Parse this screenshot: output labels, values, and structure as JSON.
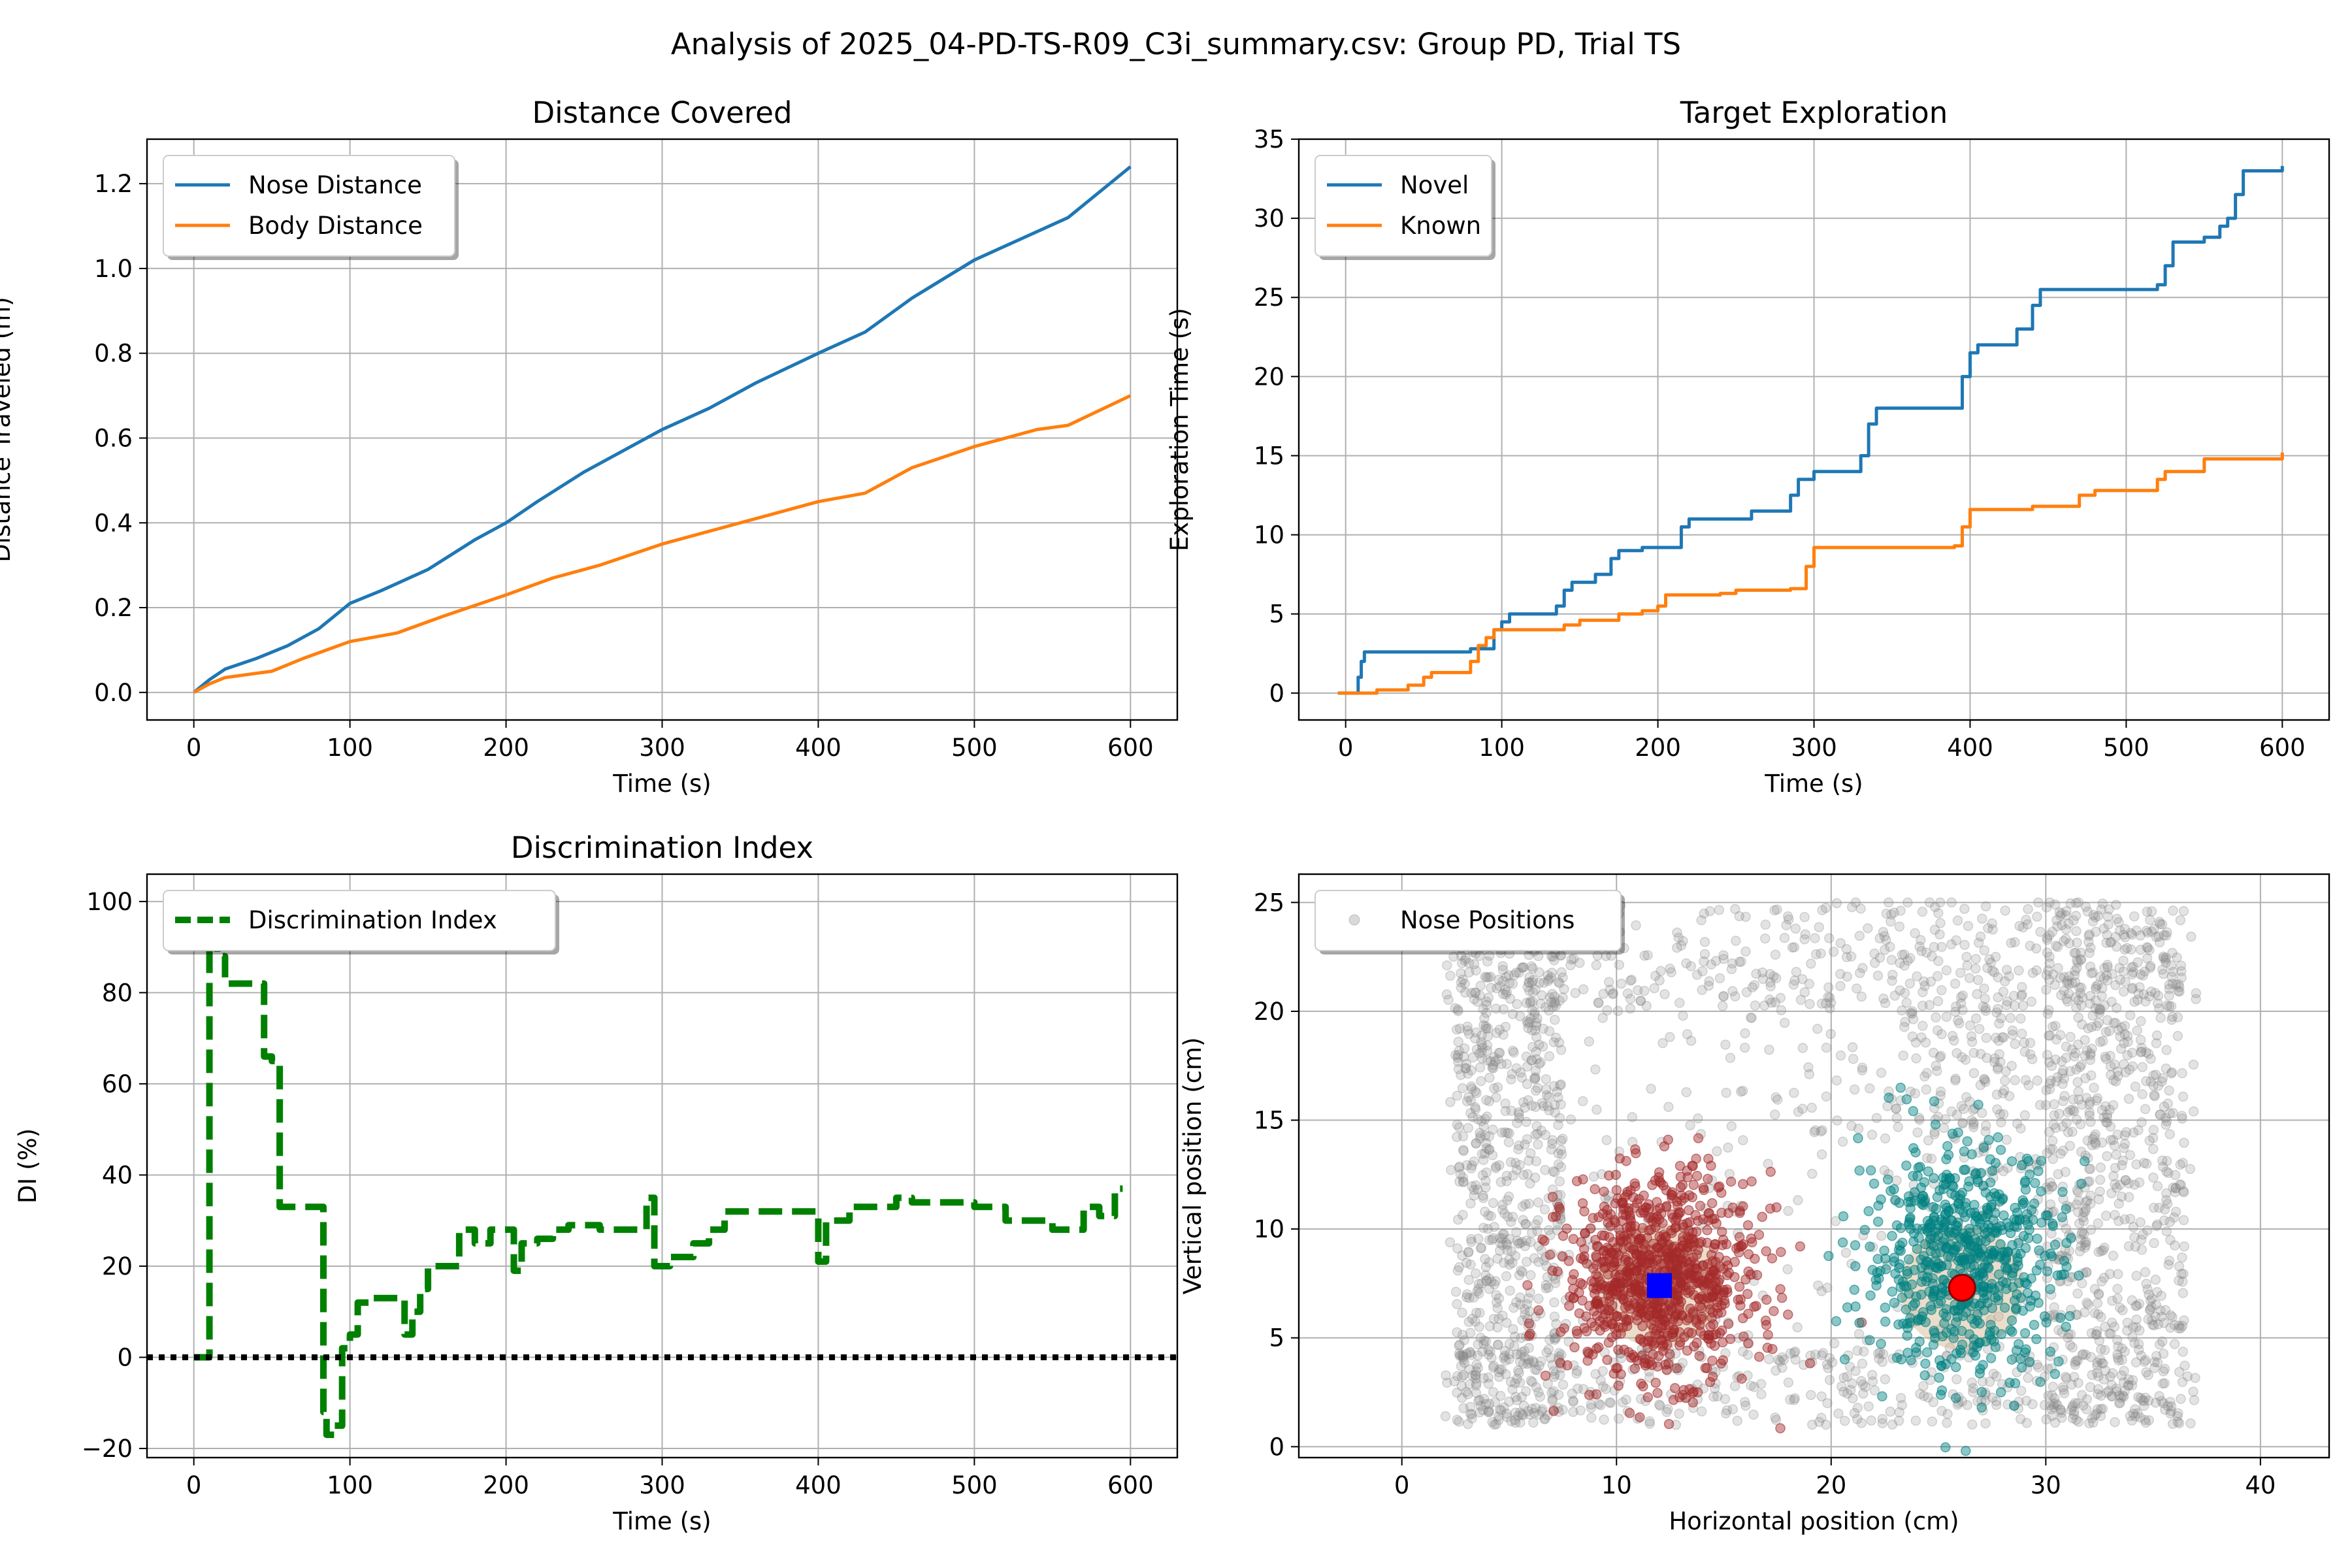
{
  "suptitle": "Analysis of 2025_04-PD-TS-R09_C3i_summary.csv: Group PD, Trial TS",
  "colors": {
    "blue": "#1f77b4",
    "orange": "#ff7f0e",
    "green": "#008000",
    "gray": "#808080",
    "darkred": "#a52a2a",
    "teal": "#008080",
    "tan": "#d2b48c",
    "marker_blue": "#0000ff",
    "marker_red": "#ff0000"
  },
  "chart_data": [
    {
      "type": "line",
      "title": "Distance Covered",
      "xlabel": "Time (s)",
      "ylabel": "Distance Traveled (m)",
      "xlim": [
        -30,
        630
      ],
      "ylim": [
        -0.065,
        1.305
      ],
      "xticks": [
        0,
        100,
        200,
        300,
        400,
        500,
        600
      ],
      "yticks": [
        0.0,
        0.2,
        0.4,
        0.6,
        0.8,
        1.0,
        1.2
      ],
      "ytick_decimals": 1,
      "grid": true,
      "legend": "upper left",
      "series": [
        {
          "name": "Nose Distance",
          "color": "#1f77b4",
          "style": "solid",
          "x": [
            0,
            10,
            20,
            40,
            60,
            80,
            100,
            120,
            150,
            180,
            200,
            220,
            250,
            280,
            300,
            330,
            360,
            400,
            430,
            460,
            500,
            530,
            560,
            600
          ],
          "y": [
            0.0,
            0.03,
            0.055,
            0.08,
            0.11,
            0.15,
            0.21,
            0.24,
            0.29,
            0.36,
            0.4,
            0.45,
            0.52,
            0.58,
            0.62,
            0.67,
            0.73,
            0.8,
            0.85,
            0.93,
            1.02,
            1.07,
            1.12,
            1.24
          ]
        },
        {
          "name": "Body Distance",
          "color": "#ff7f0e",
          "style": "solid",
          "x": [
            0,
            10,
            20,
            50,
            70,
            100,
            130,
            160,
            200,
            230,
            260,
            300,
            350,
            400,
            430,
            460,
            500,
            540,
            560,
            600
          ],
          "y": [
            0.0,
            0.02,
            0.035,
            0.05,
            0.08,
            0.12,
            0.14,
            0.18,
            0.23,
            0.27,
            0.3,
            0.35,
            0.4,
            0.45,
            0.47,
            0.53,
            0.58,
            0.62,
            0.63,
            0.7
          ]
        }
      ]
    },
    {
      "type": "line",
      "title": "Target Exploration",
      "xlabel": "Time (s)",
      "ylabel": "Exploration Time (s)",
      "xlim": [
        -30,
        630
      ],
      "ylim": [
        -1.7,
        35.0
      ],
      "xticks": [
        0,
        100,
        200,
        300,
        400,
        500,
        600
      ],
      "yticks": [
        0,
        5,
        10,
        15,
        20,
        25,
        30,
        35
      ],
      "ytick_decimals": 0,
      "grid": true,
      "legend": "upper left",
      "series": [
        {
          "name": "Novel",
          "color": "#1f77b4",
          "style": "steps",
          "x": [
            -5,
            5,
            8,
            10,
            12,
            80,
            95,
            100,
            105,
            135,
            140,
            145,
            160,
            170,
            175,
            190,
            215,
            220,
            260,
            285,
            290,
            300,
            330,
            335,
            340,
            390,
            395,
            400,
            405,
            430,
            440,
            445,
            520,
            525,
            530,
            550,
            560,
            565,
            570,
            575,
            600
          ],
          "y": [
            0,
            0,
            1.0,
            2.0,
            2.6,
            2.8,
            4.0,
            4.5,
            5.0,
            5.5,
            6.5,
            7.0,
            7.5,
            8.5,
            9.0,
            9.2,
            10.5,
            11.0,
            11.5,
            12.5,
            13.5,
            14.0,
            15.0,
            17.0,
            18.0,
            18.0,
            20.0,
            21.5,
            22.0,
            23.0,
            24.5,
            25.5,
            25.8,
            27.0,
            28.5,
            28.8,
            29.5,
            30.0,
            31.5,
            33.0,
            33.3
          ]
        },
        {
          "name": "Known",
          "color": "#ff7f0e",
          "style": "steps",
          "x": [
            -5,
            10,
            20,
            40,
            50,
            55,
            80,
            85,
            90,
            95,
            140,
            150,
            175,
            190,
            200,
            205,
            240,
            250,
            285,
            295,
            300,
            390,
            395,
            400,
            440,
            470,
            480,
            520,
            525,
            550,
            600
          ],
          "y": [
            0,
            0,
            0.2,
            0.5,
            1.0,
            1.3,
            2.0,
            3.0,
            3.5,
            4.0,
            4.3,
            4.6,
            5.0,
            5.2,
            5.5,
            6.2,
            6.3,
            6.5,
            6.6,
            8.0,
            9.2,
            9.3,
            10.5,
            11.6,
            11.8,
            12.5,
            12.8,
            13.5,
            14.0,
            14.8,
            15.2
          ]
        }
      ]
    },
    {
      "type": "line",
      "title": "Discrimination Index",
      "xlabel": "Time (s)",
      "ylabel": "DI (%)",
      "xlim": [
        -30,
        630
      ],
      "ylim": [
        -22,
        106
      ],
      "xticks": [
        0,
        100,
        200,
        300,
        400,
        500,
        600
      ],
      "yticks": [
        -20,
        0,
        20,
        40,
        60,
        80,
        100
      ],
      "ytick_decimals": 0,
      "grid": true,
      "legend": "upper left",
      "series": [
        {
          "name": "Discrimination Index",
          "color": "#008000",
          "style": "dashed-steps",
          "x": [
            0,
            8,
            10,
            12,
            15,
            20,
            40,
            45,
            50,
            55,
            60,
            80,
            83,
            85,
            90,
            95,
            100,
            105,
            115,
            130,
            135,
            140,
            145,
            150,
            165,
            170,
            180,
            190,
            200,
            205,
            210,
            220,
            230,
            240,
            260,
            280,
            290,
            295,
            300,
            305,
            320,
            330,
            340,
            350,
            380,
            395,
            400,
            405,
            420,
            440,
            450,
            460,
            480,
            500,
            520,
            540,
            550,
            570,
            580,
            590,
            595
          ],
          "y": [
            0,
            0,
            90,
            92,
            88,
            82,
            82,
            66,
            65,
            33,
            33,
            33,
            -12,
            -17,
            -15,
            2,
            5,
            12,
            13,
            13,
            5,
            10,
            15,
            20,
            20,
            28,
            25,
            28,
            28,
            19,
            25,
            26,
            28,
            29,
            28,
            28,
            35,
            20,
            20,
            22,
            25,
            28,
            32,
            32,
            32,
            32,
            21,
            30,
            33,
            33,
            35,
            34,
            34,
            33,
            30,
            30,
            28,
            33,
            31,
            37,
            37
          ]
        }
      ],
      "hline": {
        "y": 0,
        "style": "dotted",
        "color": "#000000"
      }
    },
    {
      "type": "scatter",
      "title": "",
      "xlabel": "Horizontal position (cm)",
      "ylabel": "Vertical position (cm)",
      "xlim": [
        -4.8,
        43.2
      ],
      "ylim": [
        -0.5,
        26.3
      ],
      "xticks": [
        0,
        10,
        20,
        30,
        40
      ],
      "yticks": [
        0,
        5,
        10,
        15,
        20,
        25
      ],
      "ytick_decimals": 0,
      "grid": true,
      "legend": "upper left",
      "series": [
        {
          "name": "Nose Positions",
          "color": "#808080",
          "x_range": [
            2,
            37
          ],
          "y_range": [
            1,
            25
          ],
          "dense_regions": "arena border and corners"
        },
        {
          "name": "",
          "color": "#a52a2a",
          "center": [
            12.0,
            7.4
          ],
          "spread": [
            5,
            7
          ]
        },
        {
          "name": "",
          "color": "#008080",
          "center": [
            26.1,
            7.3
          ],
          "spread": [
            7,
            8
          ]
        }
      ],
      "markers": [
        {
          "shape": "square",
          "color": "#0000ff",
          "x": 12.0,
          "y": 7.4
        },
        {
          "shape": "circle",
          "color": "#ff0000",
          "x": 26.1,
          "y": 7.3
        }
      ]
    }
  ]
}
